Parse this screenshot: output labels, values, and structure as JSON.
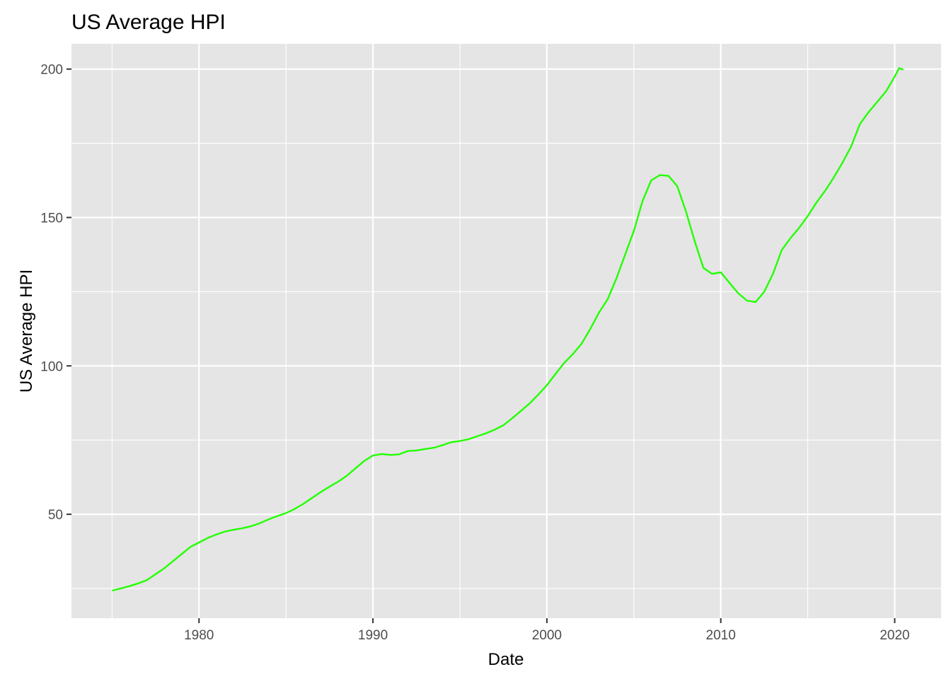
{
  "chart_data": {
    "type": "line",
    "title": "US Average HPI",
    "xlabel": "Date",
    "ylabel": "US Average HPI",
    "x_axis_type": "date",
    "xlim": [
      "1972-09-01",
      "2022-09-01"
    ],
    "ylim": [
      15,
      208.5
    ],
    "x_ticks": [
      {
        "value": "1980-01-01",
        "label": "1980"
      },
      {
        "value": "1990-01-01",
        "label": "1990"
      },
      {
        "value": "2000-01-01",
        "label": "2000"
      },
      {
        "value": "2010-01-01",
        "label": "2010"
      },
      {
        "value": "2020-01-01",
        "label": "2020"
      }
    ],
    "x_minor_ticks": [
      "1975-01-01",
      "1985-01-01",
      "1995-01-01",
      "2005-01-01",
      "2015-01-01"
    ],
    "y_ticks": [
      {
        "value": 50,
        "label": "50"
      },
      {
        "value": 100,
        "label": "100"
      },
      {
        "value": 150,
        "label": "150"
      },
      {
        "value": 200,
        "label": "200"
      }
    ],
    "y_minor_ticks": [
      25,
      75,
      125,
      175
    ],
    "grid": true,
    "panel_background": "#e5e5e5",
    "series": [
      {
        "color": "#22ff00",
        "points": [
          [
            "1975-01-01",
            24.3
          ],
          [
            "1975-07-01",
            25.0
          ],
          [
            "1976-01-01",
            25.8
          ],
          [
            "1976-07-01",
            26.7
          ],
          [
            "1977-01-01",
            27.8
          ],
          [
            "1977-07-01",
            29.8
          ],
          [
            "1978-01-01",
            31.8
          ],
          [
            "1978-07-01",
            34.2
          ],
          [
            "1979-01-01",
            36.6
          ],
          [
            "1979-07-01",
            39.0
          ],
          [
            "1980-01-01",
            40.5
          ],
          [
            "1980-07-01",
            42.0
          ],
          [
            "1981-01-01",
            43.2
          ],
          [
            "1981-07-01",
            44.2
          ],
          [
            "1982-01-01",
            44.8
          ],
          [
            "1982-07-01",
            45.3
          ],
          [
            "1983-01-01",
            46.0
          ],
          [
            "1983-07-01",
            47.0
          ],
          [
            "1984-01-01",
            48.3
          ],
          [
            "1984-07-01",
            49.4
          ],
          [
            "1985-01-01",
            50.4
          ],
          [
            "1985-07-01",
            51.8
          ],
          [
            "1986-01-01",
            53.5
          ],
          [
            "1986-07-01",
            55.5
          ],
          [
            "1987-01-01",
            57.5
          ],
          [
            "1987-07-01",
            59.3
          ],
          [
            "1988-01-01",
            61.0
          ],
          [
            "1988-07-01",
            63.0
          ],
          [
            "1989-01-01",
            65.5
          ],
          [
            "1989-07-01",
            68.0
          ],
          [
            "1990-01-01",
            69.8
          ],
          [
            "1990-07-01",
            70.3
          ],
          [
            "1991-01-01",
            70.0
          ],
          [
            "1991-07-01",
            70.2
          ],
          [
            "1992-01-01",
            71.3
          ],
          [
            "1992-07-01",
            71.5
          ],
          [
            "1993-01-01",
            72.0
          ],
          [
            "1993-07-01",
            72.4
          ],
          [
            "1994-01-01",
            73.3
          ],
          [
            "1994-07-01",
            74.3
          ],
          [
            "1995-01-01",
            74.7
          ],
          [
            "1995-07-01",
            75.3
          ],
          [
            "1996-01-01",
            76.3
          ],
          [
            "1996-07-01",
            77.3
          ],
          [
            "1997-01-01",
            78.5
          ],
          [
            "1997-07-01",
            80.0
          ],
          [
            "1998-01-01",
            82.3
          ],
          [
            "1998-07-01",
            84.8
          ],
          [
            "1999-01-01",
            87.3
          ],
          [
            "1999-07-01",
            90.3
          ],
          [
            "2000-01-01",
            93.5
          ],
          [
            "2000-07-01",
            97.3
          ],
          [
            "2001-01-01",
            101.0
          ],
          [
            "2001-07-01",
            104.0
          ],
          [
            "2002-01-01",
            107.5
          ],
          [
            "2002-07-01",
            112.5
          ],
          [
            "2003-01-01",
            118.0
          ],
          [
            "2003-07-01",
            122.5
          ],
          [
            "2004-01-01",
            129.5
          ],
          [
            "2004-07-01",
            137.5
          ],
          [
            "2005-01-01",
            145.5
          ],
          [
            "2005-07-01",
            155.5
          ],
          [
            "2006-01-01",
            162.5
          ],
          [
            "2006-07-01",
            164.3
          ],
          [
            "2007-01-01",
            164.0
          ],
          [
            "2007-07-01",
            160.5
          ],
          [
            "2008-01-01",
            152.0
          ],
          [
            "2008-07-01",
            142.0
          ],
          [
            "2009-01-01",
            133.0
          ],
          [
            "2009-07-01",
            131.0
          ],
          [
            "2010-01-01",
            131.5
          ],
          [
            "2010-07-01",
            128.0
          ],
          [
            "2011-01-01",
            124.5
          ],
          [
            "2011-07-01",
            122.0
          ],
          [
            "2012-01-01",
            121.5
          ],
          [
            "2012-07-01",
            125.0
          ],
          [
            "2013-01-01",
            131.0
          ],
          [
            "2013-07-01",
            139.0
          ],
          [
            "2014-01-01",
            143.0
          ],
          [
            "2014-07-01",
            146.5
          ],
          [
            "2015-01-01",
            150.5
          ],
          [
            "2015-07-01",
            155.0
          ],
          [
            "2016-01-01",
            159.0
          ],
          [
            "2016-07-01",
            163.5
          ],
          [
            "2017-01-01",
            168.5
          ],
          [
            "2017-07-01",
            174.0
          ],
          [
            "2018-01-01",
            181.5
          ],
          [
            "2018-07-01",
            185.5
          ],
          [
            "2019-01-01",
            189.0
          ],
          [
            "2019-07-01",
            192.5
          ],
          [
            "2020-01-01",
            197.5
          ],
          [
            "2020-04-01",
            200.3
          ],
          [
            "2020-07-01",
            199.8
          ]
        ]
      }
    ]
  }
}
